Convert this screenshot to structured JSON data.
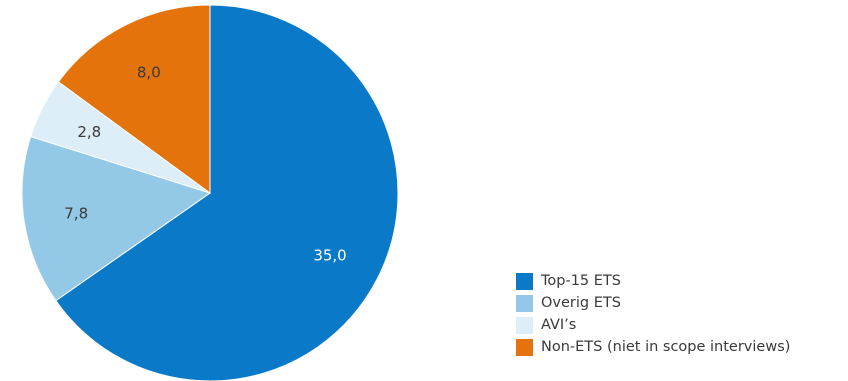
{
  "chart_data": {
    "type": "pie",
    "title": "",
    "start_angle_deg": 0,
    "direction": "clockwise",
    "slices": [
      {
        "label": "Top-15 ETS",
        "value": 35.0,
        "display": "35,0",
        "color": "#0a7ac8",
        "label_color": "#ffffff"
      },
      {
        "label": "Overig ETS",
        "value": 7.8,
        "display": "7,8",
        "color": "#93c9e6",
        "label_color": "#3a3a3a"
      },
      {
        "label": "AVI’s",
        "value": 2.8,
        "display": "2,8",
        "color": "#ddeef8",
        "label_color": "#3a3a3a"
      },
      {
        "label": "Non-ETS (niet in scope interviews)",
        "value": 8.0,
        "display": "8,0",
        "color": "#e3730a",
        "label_color": "#3a3a3a"
      }
    ],
    "legend_position": "bottom-right"
  }
}
